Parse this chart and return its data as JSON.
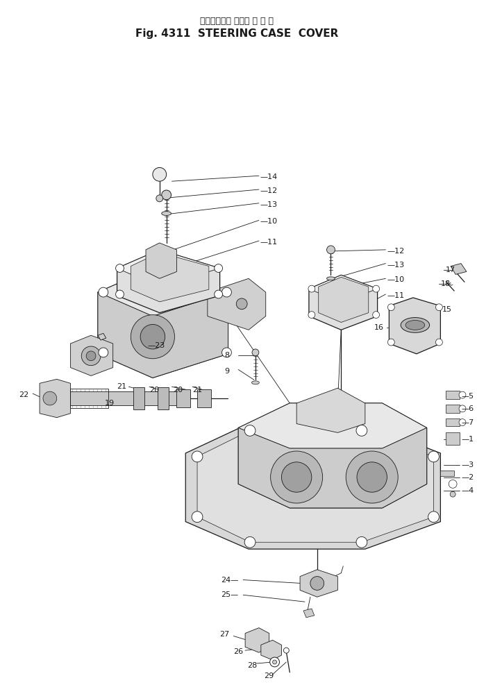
{
  "title_japanese": "ステアリング ケース カ バ ー",
  "title_english": "Fig. 4311  STEERING CASE  COVER",
  "bg_color": "#ffffff",
  "fig_width": 6.87,
  "fig_height": 10.0,
  "dpi": 100
}
